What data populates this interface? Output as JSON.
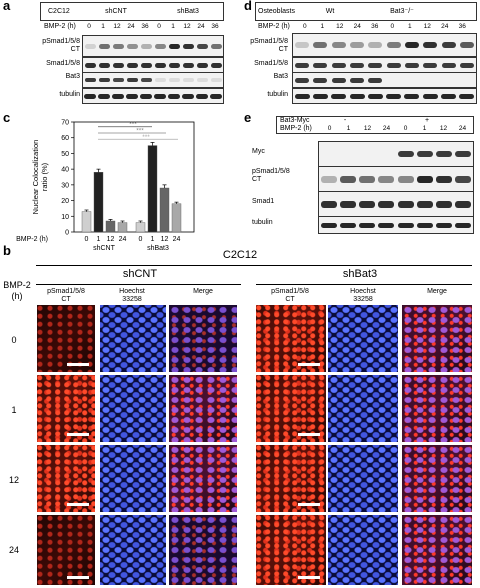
{
  "panel_a": {
    "letter": "a",
    "cell_line": "C2C12",
    "groups": [
      "shCNT",
      "shBat3"
    ],
    "time_label": "BMP-2 (h)",
    "times": [
      "0",
      "1",
      "12",
      "24",
      "36",
      "0",
      "1",
      "12",
      "24",
      "36"
    ],
    "rows": [
      "pSmad1/5/8\nCT",
      "Smad1/5/8",
      "Bat3",
      "tubulin"
    ]
  },
  "panel_d": {
    "letter": "d",
    "cell_line": "Osteoblasts",
    "groups": [
      "Wt",
      "Bat3⁻/⁻"
    ],
    "time_label": "BMP-2 (h)",
    "times": [
      "0",
      "1",
      "12",
      "24",
      "36",
      "0",
      "1",
      "12",
      "24",
      "36"
    ],
    "rows": [
      "pSmad1/5/8\nCT",
      "Smad1/5/8",
      "Bat3",
      "tubulin"
    ]
  },
  "panel_c": {
    "letter": "c",
    "time_label": "BMP-2 (h)",
    "group_labels": [
      "shCNT",
      "shBat3"
    ],
    "significance": [
      "***",
      "***",
      "***"
    ]
  },
  "chart_data": {
    "type": "bar",
    "title": "",
    "ylabel": "Nuclear Colocalization ratio (%)",
    "xlabel": "BMP-2 (h)",
    "ylim": [
      0,
      70
    ],
    "yticks": [
      0,
      10,
      20,
      30,
      40,
      50,
      60,
      70
    ],
    "categories": [
      "0",
      "1",
      "12",
      "24",
      "0",
      "1",
      "12",
      "24"
    ],
    "groups": [
      "shCNT",
      "shCNT",
      "shCNT",
      "shCNT",
      "shBat3",
      "shBat3",
      "shBat3",
      "shBat3"
    ],
    "values": [
      13,
      38,
      7,
      6,
      6,
      55,
      28,
      18
    ],
    "errors": [
      1,
      2,
      1,
      1,
      1,
      2,
      2,
      1
    ],
    "colors": [
      "#cfcfcf",
      "#222222",
      "#666666",
      "#a8a8a8",
      "#cfcfcf",
      "#222222",
      "#666666",
      "#a8a8a8"
    ]
  },
  "panel_e": {
    "letter": "e",
    "construct": "Bat3-Myc",
    "signs": [
      "-",
      "+"
    ],
    "time_label": "BMP-2 (h)",
    "times": [
      "0",
      "1",
      "12",
      "24",
      "0",
      "1",
      "12",
      "24"
    ],
    "rows": [
      "Myc",
      "pSmad1/5/8\nCT",
      "Smad1",
      "tubulin"
    ]
  },
  "panel_b": {
    "letter": "b",
    "title": "C2C12",
    "groups": [
      "shCNT",
      "shBat3"
    ],
    "row_axis_label": "BMP-2\n(h)",
    "row_labels": [
      "0",
      "1",
      "12",
      "24"
    ],
    "col_labels": [
      "pSmad1/5/8\nCT",
      "Hoechst\n33258",
      "Merge",
      "pSmad1/5/8\nCT",
      "Hoechst\n33258",
      "Merge"
    ]
  }
}
